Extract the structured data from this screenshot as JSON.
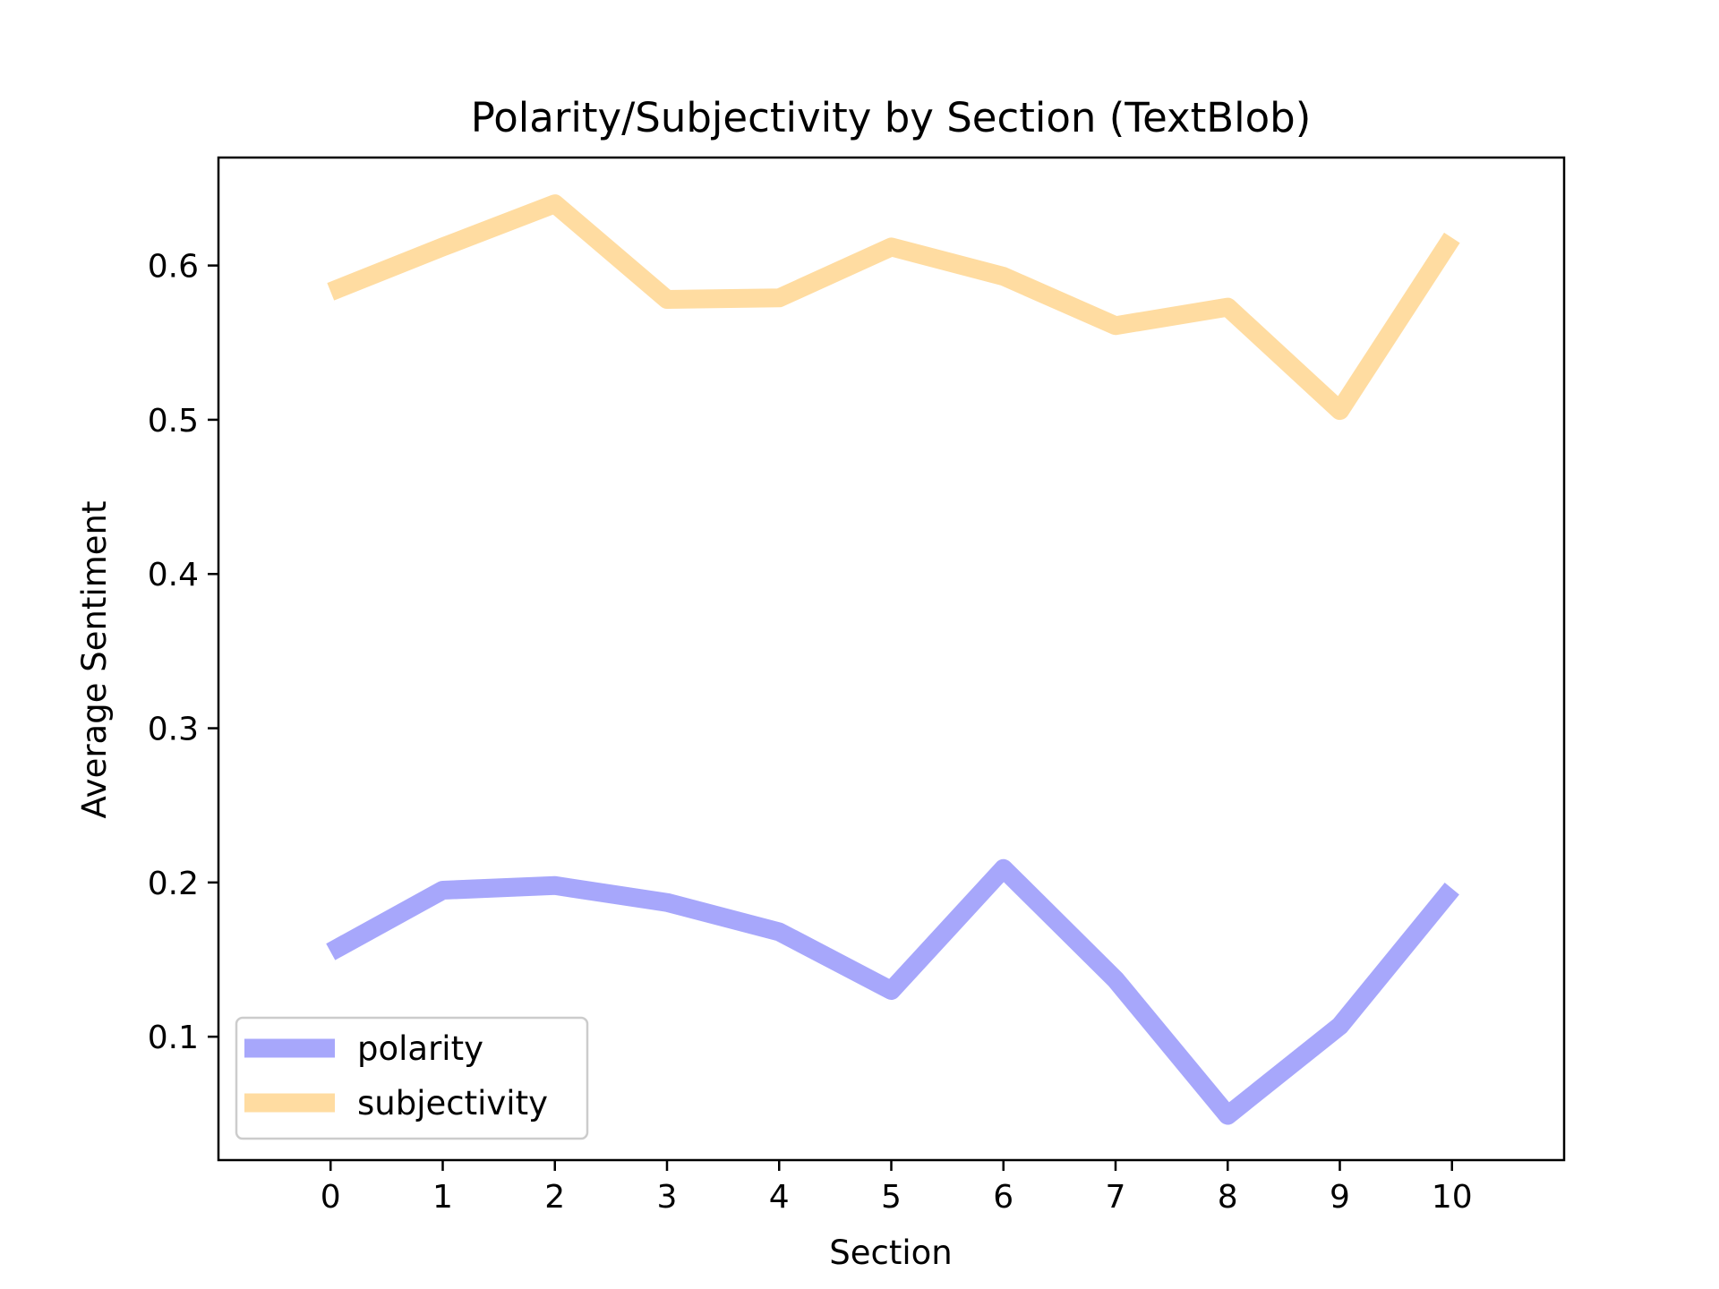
{
  "chart_data": {
    "type": "line",
    "title": "Polarity/Subjectivity by Section (TextBlob)",
    "xlabel": "Section",
    "ylabel": "Average Sentiment",
    "x": [
      0,
      1,
      2,
      3,
      4,
      5,
      6,
      7,
      8,
      9,
      10
    ],
    "xlim": [
      -1,
      11
    ],
    "ylim": [
      0.02,
      0.67
    ],
    "x_ticks": [
      0,
      1,
      2,
      3,
      4,
      5,
      6,
      7,
      8,
      9,
      10
    ],
    "y_ticks": [
      0.1,
      0.2,
      0.3,
      0.4,
      0.5,
      0.6
    ],
    "grid": false,
    "legend_position": "lower-left",
    "series": [
      {
        "name": "polarity",
        "color": "#a7a7fb",
        "values": [
          0.155,
          0.195,
          0.198,
          0.187,
          0.168,
          0.13,
          0.209,
          0.137,
          0.049,
          0.107,
          0.196
        ]
      },
      {
        "name": "subjectivity",
        "color": "#ffdca1",
        "values": [
          0.583,
          0.612,
          0.64,
          0.578,
          0.579,
          0.612,
          0.593,
          0.561,
          0.573,
          0.506,
          0.618
        ]
      }
    ]
  }
}
